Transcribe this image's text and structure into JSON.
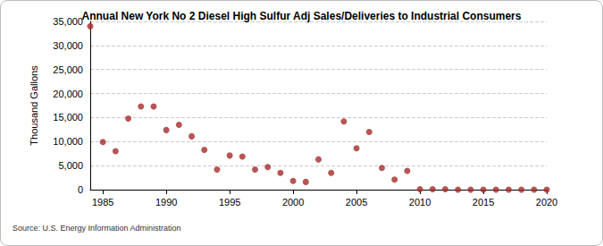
{
  "chart_data": {
    "type": "scatter",
    "title": "Annual New York No 2 Diesel High Sulfur Adj Sales/Deliveries to Industrial Consumers",
    "y_label": "Thousand Gallons",
    "source": "Source: U.S. Energy Information Administration",
    "x": [
      1984,
      1985,
      1986,
      1987,
      1988,
      1989,
      1990,
      1991,
      1992,
      1993,
      1994,
      1995,
      1996,
      1997,
      1998,
      1999,
      2000,
      2001,
      2002,
      2003,
      2004,
      2005,
      2006,
      2007,
      2008,
      2009,
      2010,
      2011,
      2012,
      2013,
      2014,
      2015,
      2016,
      2017,
      2018,
      2019,
      2020
    ],
    "values": [
      34000,
      9900,
      8000,
      14800,
      17300,
      17300,
      12400,
      13500,
      11100,
      8300,
      4200,
      7100,
      6900,
      4200,
      4700,
      3500,
      1800,
      1600,
      6300,
      3500,
      14200,
      8600,
      12000,
      4500,
      2100,
      3900,
      100,
      100,
      100,
      0,
      0,
      0,
      0,
      0,
      0,
      0,
      0
    ],
    "color": "#a52a2a",
    "marker": "circle",
    "xlim": [
      1984,
      2020
    ],
    "xticks": [
      1985,
      1990,
      1995,
      2000,
      2005,
      2010,
      2015,
      2020
    ],
    "ylim": [
      0,
      35000
    ],
    "yticks": [
      0,
      {
        "value": 5000,
        "label": "5,000"
      },
      {
        "value": 10000,
        "label": "10,000"
      },
      {
        "value": 15000,
        "label": "15,000"
      },
      {
        "value": 20000,
        "label": "20,000"
      },
      {
        "value": 25000,
        "label": "25,000"
      },
      {
        "value": 30000,
        "label": "30,000"
      },
      {
        "value": 35000,
        "label": "35,000"
      }
    ],
    "grid": true
  }
}
